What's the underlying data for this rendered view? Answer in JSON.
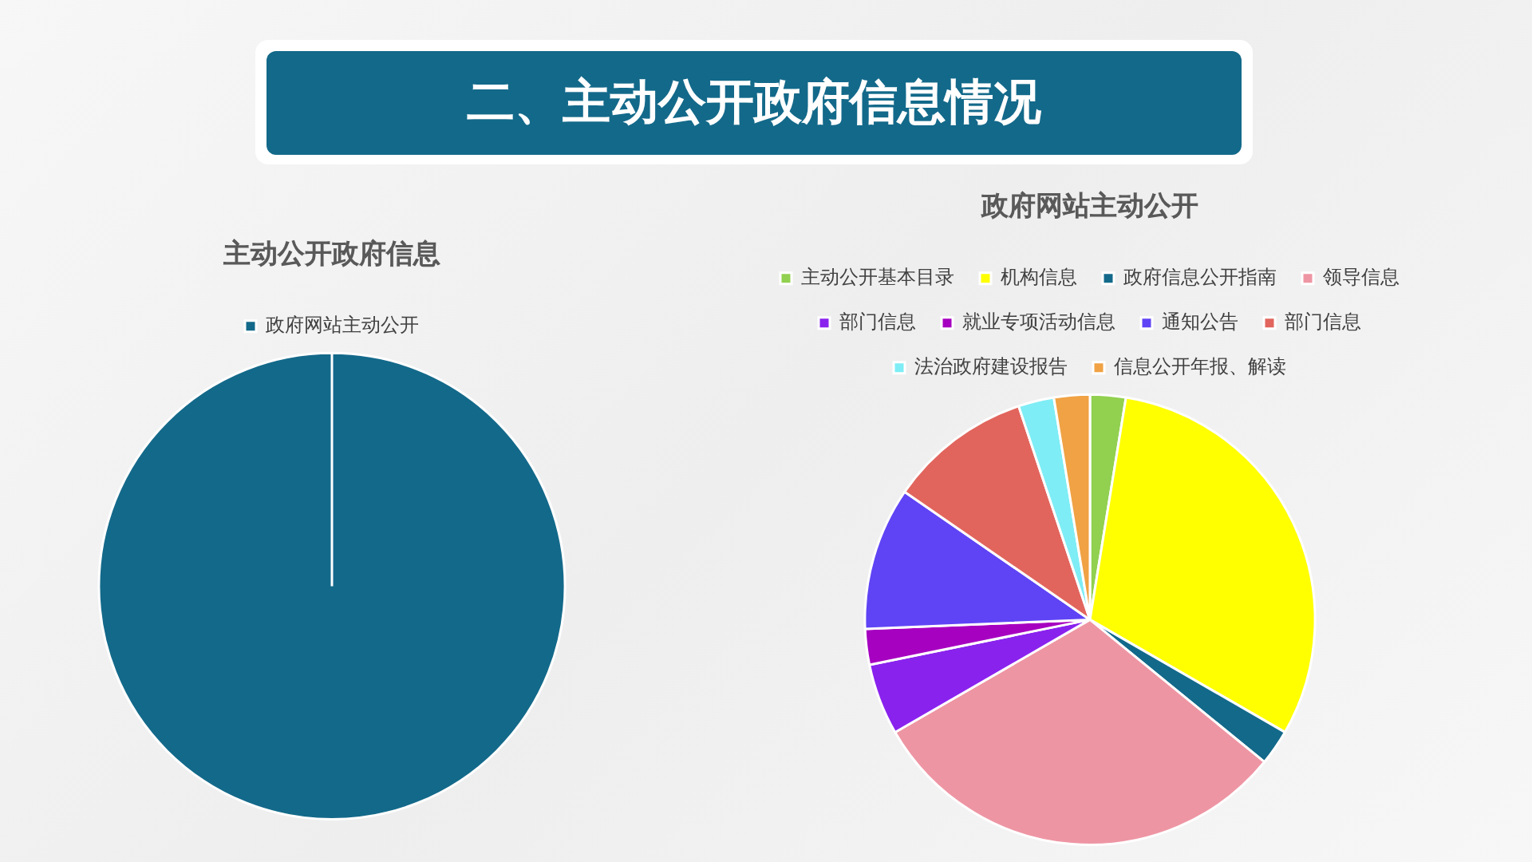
{
  "chart_data": [
    {
      "type": "other",
      "title": "二、主动公开政府信息情况"
    },
    {
      "type": "pie",
      "title": "主动公开政府信息",
      "categories": [
        "政府网站主动公开"
      ],
      "values": [
        100
      ],
      "colors": [
        "#13698a"
      ],
      "legend": "top"
    },
    {
      "type": "pie",
      "title": "政府网站主动公开",
      "categories": [
        "主动公开基本目录",
        "机构信息",
        "政府信息公开指南",
        "领导信息",
        "部门信息",
        "就业专项活动信息",
        "通知公告",
        "部门信息",
        "法治政府建设报告",
        "信息公开年报、解读"
      ],
      "values": [
        2.56,
        30.77,
        2.56,
        30.77,
        5.13,
        2.56,
        10.26,
        10.26,
        2.56,
        2.57
      ],
      "colors": [
        "#92d050",
        "#ffff00",
        "#13698a",
        "#ee95a3",
        "#8a22ee",
        "#a600c0",
        "#5f44f5",
        "#e1655d",
        "#7eedf5",
        "#f0a244"
      ],
      "legend": "top"
    }
  ]
}
